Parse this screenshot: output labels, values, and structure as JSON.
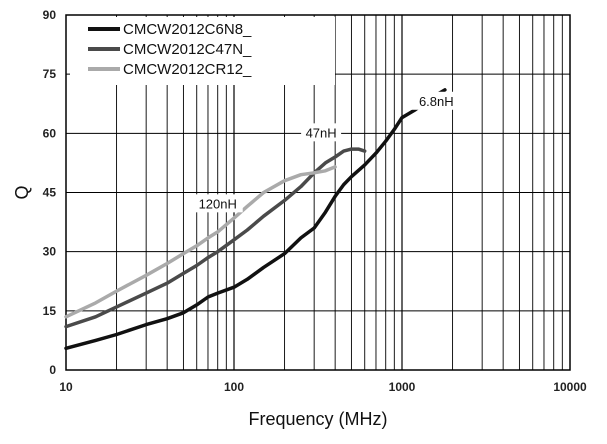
{
  "chart_data": {
    "type": "line",
    "xlabel": "Frequency (MHz)",
    "ylabel": "Q",
    "xscale": "log",
    "xlim": [
      10,
      10000
    ],
    "ylim": [
      0,
      90
    ],
    "xticks": [
      "10",
      "100",
      "1000",
      "10000"
    ],
    "yticks": [
      "0",
      "15",
      "30",
      "45",
      "60",
      "75",
      "90"
    ],
    "grid": true,
    "legend_position": "top-left",
    "series": [
      {
        "name": "CMCW2012C6N8_",
        "color": "#111111",
        "annotation": "6.8nH",
        "x": [
          10,
          15,
          20,
          30,
          40,
          50,
          60,
          70,
          80,
          100,
          120,
          150,
          200,
          250,
          300,
          350,
          400,
          450,
          500,
          600,
          700,
          800,
          900,
          1000,
          1200,
          1500,
          1800
        ],
        "y": [
          5.5,
          7.5,
          9,
          11.5,
          13,
          14.5,
          16.5,
          18.5,
          19.5,
          21,
          23,
          26,
          29.5,
          33.5,
          36,
          40,
          44,
          47,
          49,
          52,
          55,
          58,
          61,
          64,
          66,
          69,
          71
        ]
      },
      {
        "name": "CMCW2012C47N_",
        "color": "#4a4a4a",
        "annotation": "47nH",
        "x": [
          10,
          15,
          20,
          30,
          40,
          50,
          60,
          70,
          80,
          100,
          120,
          150,
          200,
          250,
          300,
          350,
          400,
          450,
          500,
          550,
          600
        ],
        "y": [
          11,
          13.5,
          16,
          19.5,
          22,
          24.5,
          26.5,
          28.5,
          30,
          33,
          35.5,
          39,
          43,
          46.5,
          50,
          52.5,
          54,
          55.5,
          56,
          56,
          55.5
        ]
      },
      {
        "name": "CMCW2012CR12_",
        "color": "#aaaaaa",
        "annotation": "120nH",
        "x": [
          10,
          15,
          20,
          30,
          40,
          50,
          60,
          70,
          80,
          100,
          120,
          150,
          200,
          250,
          300,
          350,
          400
        ],
        "y": [
          13.5,
          17,
          20,
          24,
          27,
          29.5,
          31.5,
          33.5,
          35,
          38.5,
          41.5,
          45,
          48,
          49.5,
          50,
          50.5,
          51.5
        ]
      }
    ]
  }
}
